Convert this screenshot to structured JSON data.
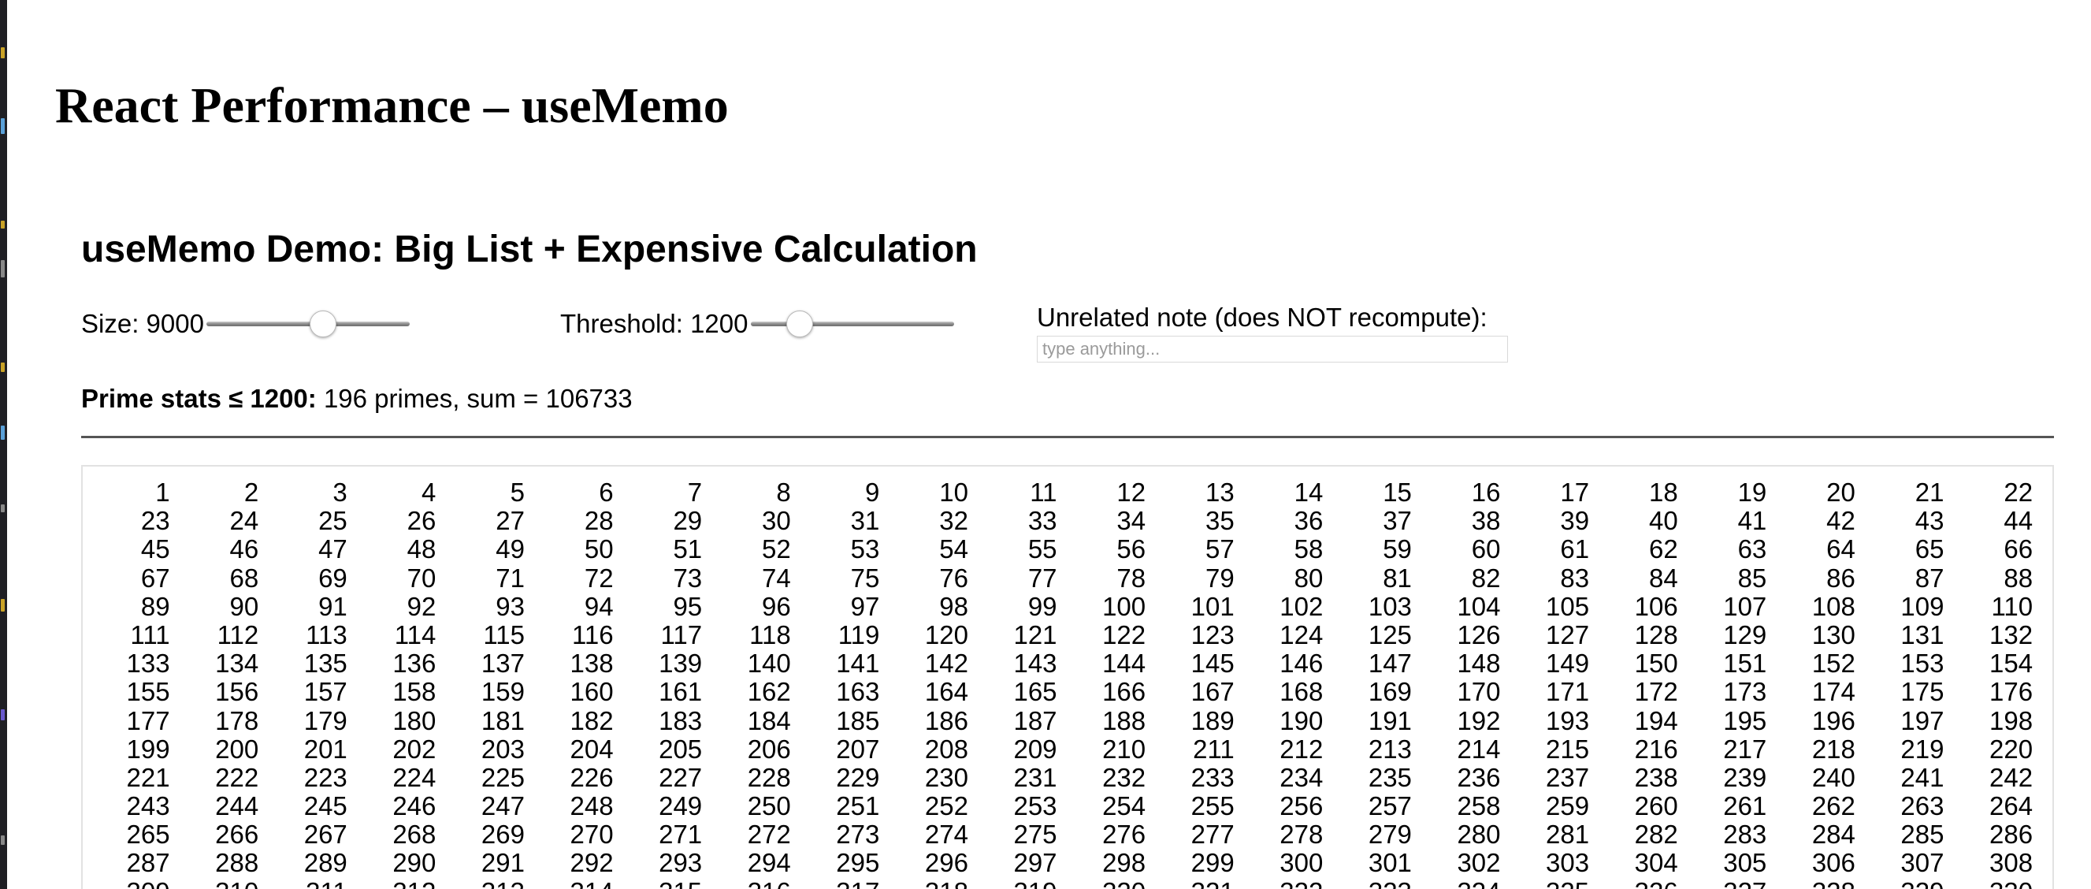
{
  "page": {
    "title": "React Performance – useMemo"
  },
  "demo": {
    "title": "useMemo Demo: Big List + Expensive Calculation",
    "size": {
      "label": "Size: 9000",
      "value": 9000,
      "level": 0.57
    },
    "threshold": {
      "label": "Threshold: 1200",
      "value": 1200,
      "level": 0.24
    },
    "note": {
      "label": "Unrelated note (does NOT recompute):",
      "placeholder": "type anything...",
      "value": ""
    },
    "stats": {
      "label": "Prime stats ≤ 1200:",
      "text": "196 primes, sum = 106733"
    },
    "list": {
      "start": 1,
      "visible_count": 330
    }
  }
}
